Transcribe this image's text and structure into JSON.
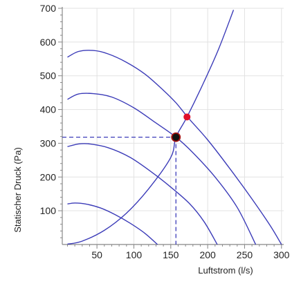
{
  "chart_data": {
    "type": "line",
    "xlabel": "Luftstrom (l/s)",
    "ylabel": "Statischer Druck (Pa)",
    "xlim": [
      3,
      303
    ],
    "ylim": [
      0,
      700
    ],
    "x_ticks": [
      "50",
      "100",
      "150",
      "200",
      "250",
      "300"
    ],
    "y_ticks": [
      "100",
      "200",
      "300",
      "400",
      "500",
      "600",
      "700"
    ],
    "grid": true,
    "fan_curves": [
      {
        "x": [
          10,
          25,
          45,
          65,
          90,
          115,
          140,
          157,
          175,
          200,
          230,
          260,
          285,
          300
        ],
        "values": [
          555,
          572,
          575,
          565,
          540,
          505,
          457,
          420,
          372,
          310,
          225,
          135,
          55,
          0
        ]
      },
      {
        "x": [
          10,
          25,
          45,
          70,
          100,
          130,
          157,
          180,
          210,
          240,
          265
        ],
        "values": [
          430,
          446,
          447,
          437,
          405,
          360,
          318,
          272,
          200,
          110,
          0
        ]
      },
      {
        "x": [
          10,
          25,
          40,
          65,
          95,
          125,
          150,
          175,
          195,
          213
        ],
        "values": [
          290,
          298,
          298,
          287,
          258,
          213,
          170,
          122,
          68,
          0
        ]
      },
      {
        "x": [
          10,
          20,
          35,
          55,
          75,
          95,
          115,
          132
        ],
        "values": [
          120,
          123,
          120,
          108,
          88,
          63,
          33,
          0
        ]
      }
    ],
    "system_curve": {
      "x": [
        10,
        30,
        60,
        90,
        120,
        150,
        157,
        172,
        195,
        215,
        235
      ],
      "values": [
        1,
        10,
        42,
        93,
        165,
        258,
        318,
        378,
        482,
        580,
        695
      ]
    },
    "operating_point": {
      "x": 157,
      "y": 318
    },
    "alternate_point": {
      "x": 172,
      "y": 378
    },
    "colors": {
      "curves": "#3b3bb8",
      "operating_point_fill": "#111111",
      "operating_point_stroke": "#a31010",
      "alternate_point": "#e0102a",
      "grid": "#e2e2e2",
      "axis": "#888888"
    }
  }
}
